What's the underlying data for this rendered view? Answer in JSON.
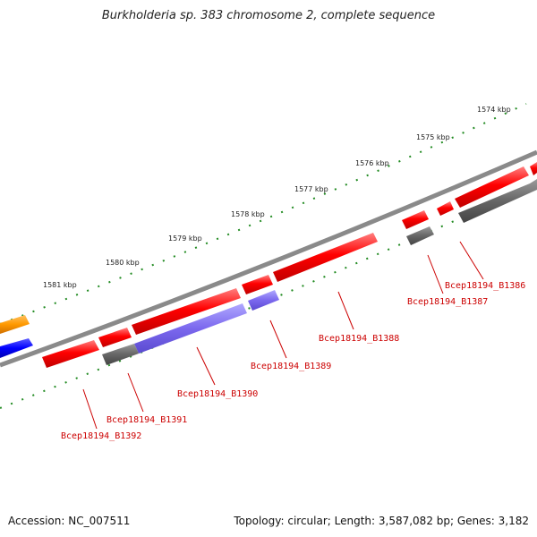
{
  "title": "Burkholderia sp. 383 chromosome 2, complete sequence",
  "scale_labels": [
    "1574 kbp",
    "1575 kbp",
    "1576 kbp",
    "1577 kbp",
    "1578 kbp",
    "1579 kbp",
    "1580 kbp",
    "1581 kbp"
  ],
  "genes": [
    "Bcep18194_B1386",
    "Bcep18194_B1387",
    "Bcep18194_B1388",
    "Bcep18194_B1389",
    "Bcep18194_B1390",
    "Bcep18194_B1391",
    "Bcep18194_B1392"
  ],
  "footer": {
    "accession": "Accession: NC_007511",
    "topology": "Topology: circular; Length: 3,587,082 bp; Genes: 3,182"
  },
  "colors": {
    "backbone": "#8a8a8a",
    "gene_red": "#ff0000",
    "gene_purple": "#7b68ee",
    "gene_gray": "#666666",
    "gene_blue": "#0000ff",
    "gene_orange": "#ff9900",
    "tick_green": "#228b22",
    "label_red": "#cc0000"
  }
}
